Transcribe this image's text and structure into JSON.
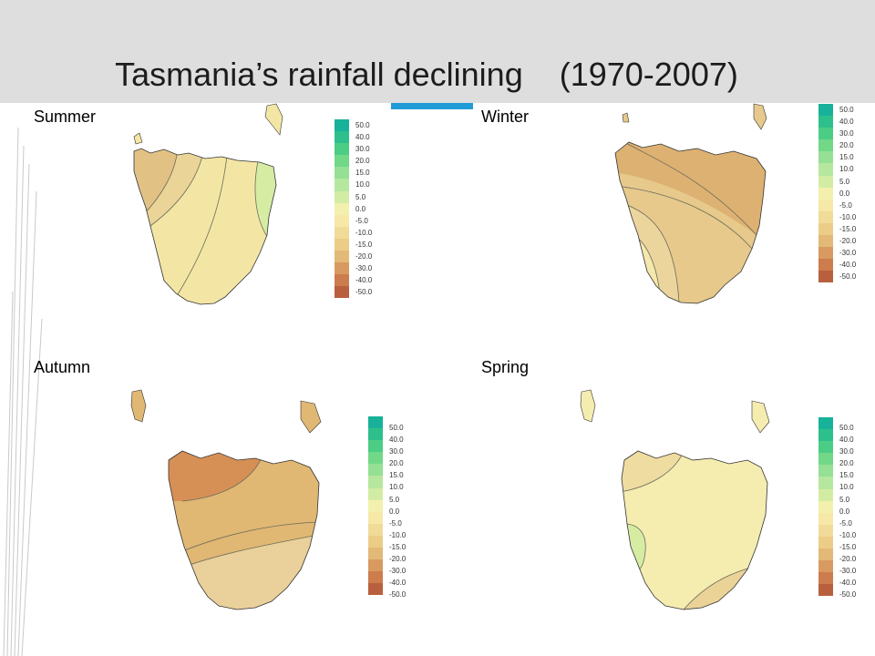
{
  "title": "Tasmania’s rainfall declining    (1970-2007)",
  "accent_color": "#1f9bd6",
  "legend_values": [
    "50.0",
    "40.0",
    "30.0",
    "20.0",
    "15.0",
    "10.0",
    "5.0",
    "0.0",
    "-5.0",
    "-10.0",
    "-15.0",
    "-20.0",
    "-30.0",
    "-40.0",
    "-50.0"
  ],
  "legend_colors": [
    "#17b299",
    "#2ec08c",
    "#4ccd86",
    "#71d888",
    "#95e094",
    "#b6e79e",
    "#d3eca4",
    "#f3f0ad",
    "#f6e8a7",
    "#f1db98",
    "#ebcd88",
    "#e3b978",
    "#d89a60",
    "#cc7c4d",
    "#b8603e"
  ],
  "panels": {
    "summer": {
      "label": "Summer"
    },
    "winter": {
      "label": "Winter"
    },
    "autumn": {
      "label": "Autumn"
    },
    "spring": {
      "label": "Spring"
    }
  }
}
